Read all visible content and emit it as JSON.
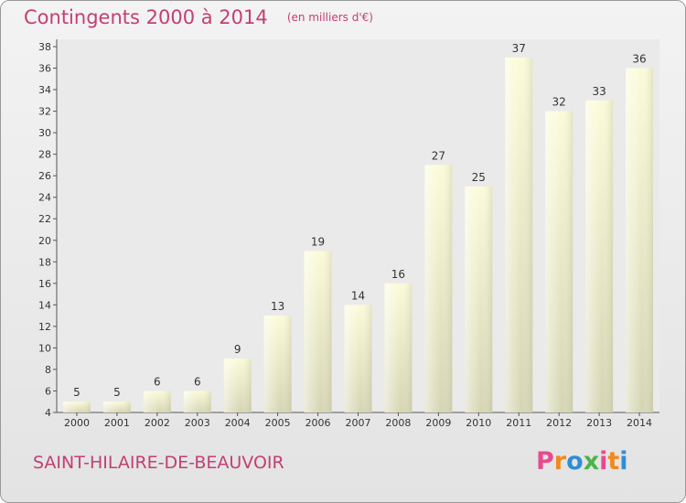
{
  "header": {
    "title": "Contingents 2000 à 2014",
    "subtitle": "(en milliers d'€)"
  },
  "footer": {
    "commune": "SAINT-HILAIRE-DE-BEAUVOIR",
    "brand": "Proxiti",
    "brand_colors": [
      "#e94a8f",
      "#f08a1c",
      "#2f8ed4",
      "#4db34d",
      "#e94a8f",
      "#f08a1c",
      "#2f8ed4"
    ]
  },
  "colors": {
    "title": "#c33f73",
    "bar_light": "#fbfbd8",
    "bar_dark": "#d5d5b3",
    "bar_side": "#e2e2c4",
    "plot_bg": "#eaeaea"
  },
  "chart_data": {
    "type": "bar",
    "title": "Contingents 2000 à 2014",
    "subtitle": "(en milliers d'€)",
    "categories": [
      "2000",
      "2001",
      "2002",
      "2003",
      "2004",
      "2005",
      "2006",
      "2007",
      "2008",
      "2009",
      "2010",
      "2011",
      "2012",
      "2013",
      "2014"
    ],
    "values": [
      5,
      5,
      6,
      6,
      9,
      13,
      19,
      14,
      16,
      27,
      25,
      37,
      32,
      33,
      36
    ],
    "ylim": [
      4,
      38
    ],
    "yticks": [
      4,
      6,
      8,
      10,
      12,
      14,
      16,
      18,
      20,
      22,
      24,
      26,
      28,
      30,
      32,
      34,
      36,
      38
    ],
    "grid": false,
    "legend": "none"
  }
}
